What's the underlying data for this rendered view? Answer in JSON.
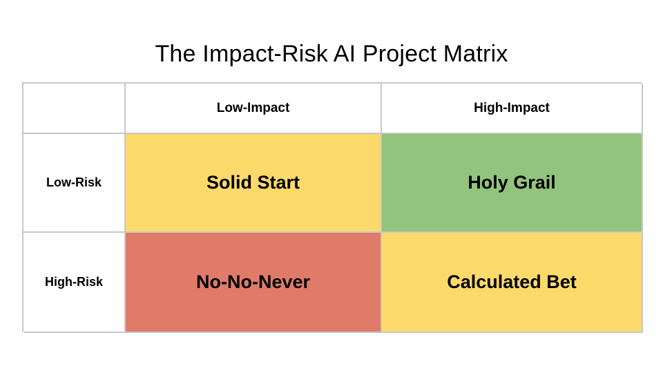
{
  "title": "The Impact-Risk AI Project Matrix",
  "columns": [
    "Low-Impact",
    "High-Impact"
  ],
  "rows": [
    "Low-Risk",
    "High-Risk"
  ],
  "quadrants": [
    {
      "label": "Solid Start",
      "color": "#fbd96b"
    },
    {
      "label": "Holy Grail",
      "color": "#93c47d"
    },
    {
      "label": "No-No-Never",
      "color": "#e07b6a"
    },
    {
      "label": "Calculated Bet",
      "color": "#fbd96b"
    }
  ]
}
